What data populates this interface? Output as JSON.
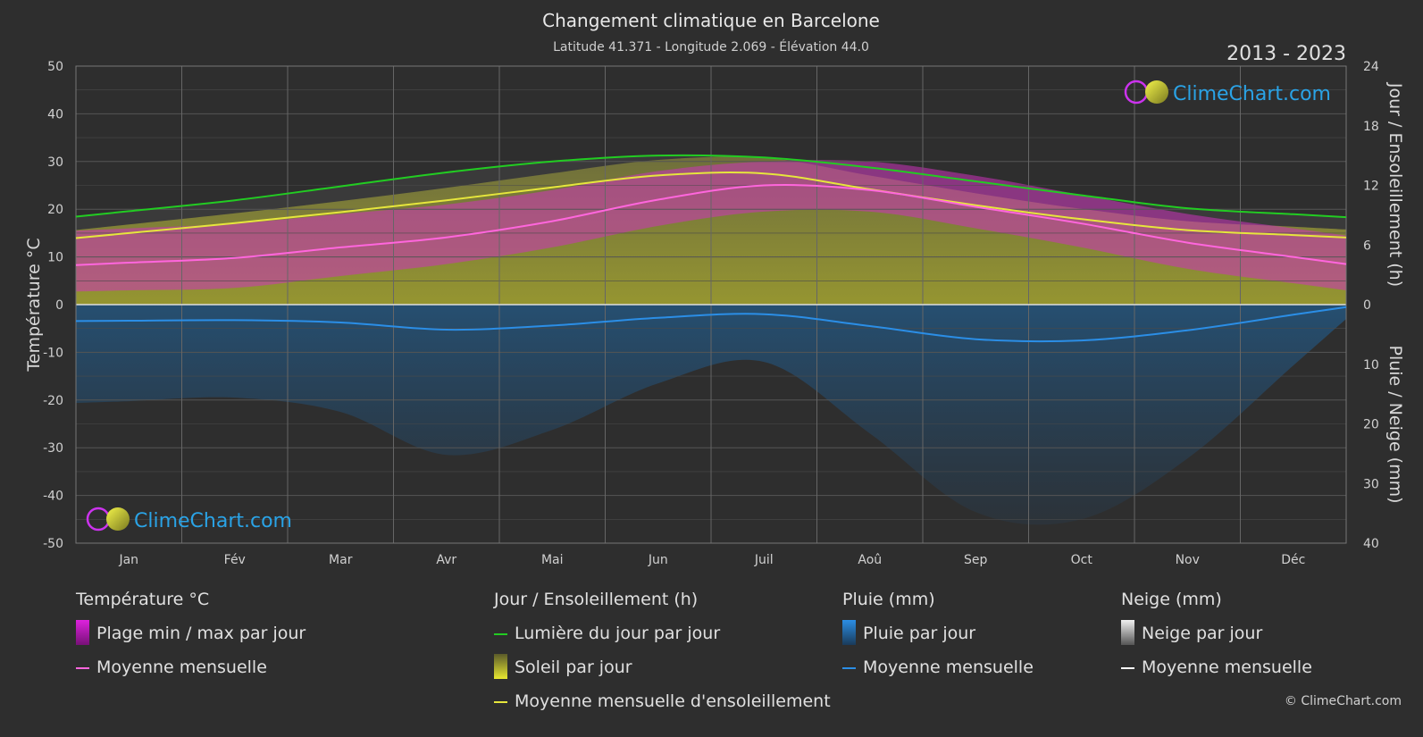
{
  "header": {
    "title": "Changement climatique en Barcelone",
    "subtitle": "Latitude 41.371 - Longitude 2.069 - Élévation 44.0",
    "period": "2013 - 2023"
  },
  "brand": {
    "name": "ClimeChart.com",
    "copyright": "© ClimeChart.com"
  },
  "chart_data": {
    "type": "area",
    "categories": [
      "Jan",
      "Fév",
      "Mar",
      "Avr",
      "Mai",
      "Jun",
      "Juil",
      "Aoû",
      "Sep",
      "Oct",
      "Nov",
      "Déc"
    ],
    "y_left": {
      "label": "Température °C",
      "ticks": [
        50,
        40,
        30,
        20,
        10,
        0,
        -10,
        -20,
        -30,
        -40,
        -50
      ],
      "range": [
        -50,
        50
      ]
    },
    "y_right_top": {
      "label": "Jour / Ensoleillement (h)",
      "ticks": [
        24,
        18,
        12,
        6,
        0
      ],
      "range": [
        0,
        24
      ]
    },
    "y_right_bottom": {
      "label": "Pluie / Neige (mm)",
      "ticks": [
        0,
        10,
        20,
        30,
        40
      ],
      "range": [
        0,
        40
      ]
    },
    "series": [
      {
        "name": "Lumière du jour par jour",
        "unit": "h",
        "color": "#22cc22",
        "values": [
          9.4,
          10.5,
          11.9,
          13.3,
          14.4,
          15.0,
          14.8,
          13.8,
          12.4,
          11.0,
          9.7,
          9.1
        ]
      },
      {
        "name": "Moyenne mensuelle d'ensoleillement",
        "unit": "h",
        "color": "#e6e63c",
        "values": [
          7.2,
          8.2,
          9.3,
          10.5,
          11.8,
          13.0,
          13.2,
          11.6,
          10.0,
          8.6,
          7.5,
          7.0
        ]
      },
      {
        "name": "Moyenne mensuelle",
        "group": "Température °C",
        "unit": "°C",
        "color": "#ff66dd",
        "values": [
          8.8,
          9.8,
          12.0,
          14.1,
          17.5,
          22.0,
          25.0,
          24.0,
          20.5,
          17.0,
          13.0,
          10.0
        ]
      },
      {
        "name": "Plage max par jour",
        "unit": "°C",
        "color": "#cc22cc",
        "values": [
          16.0,
          17.0,
          19.0,
          21.0,
          24.0,
          28.0,
          30.0,
          30.0,
          27.0,
          23.0,
          19.0,
          16.0
        ]
      },
      {
        "name": "Plage min par jour",
        "unit": "°C",
        "color": "#cc22cc",
        "values": [
          3.0,
          3.5,
          6.0,
          8.5,
          12.0,
          16.5,
          19.5,
          19.5,
          16.0,
          12.0,
          7.5,
          4.5
        ]
      },
      {
        "name": "Moyenne mensuelle",
        "group": "Pluie (mm)",
        "unit": "mm",
        "color": "#2b8ee6",
        "values": [
          2.7,
          2.6,
          3.0,
          4.2,
          3.5,
          2.2,
          1.6,
          3.6,
          5.8,
          6.0,
          4.3,
          1.7
        ]
      },
      {
        "name": "Moyenne mensuelle",
        "group": "Neige (mm)",
        "unit": "mm",
        "color": "#ffffff",
        "values": [
          0,
          0,
          0,
          0,
          0,
          0,
          0,
          0,
          0,
          0,
          0,
          0
        ]
      }
    ],
    "grid": true
  },
  "legend": {
    "temperature": {
      "title": "Température °C",
      "items": [
        {
          "label": "Plage min / max par jour",
          "kind": "box",
          "color": "#dd22dd"
        },
        {
          "label": "Moyenne mensuelle",
          "kind": "line",
          "color": "#ff66dd"
        }
      ]
    },
    "sun": {
      "title": "Jour / Ensoleillement (h)",
      "items": [
        {
          "label": "Lumière du jour par jour",
          "kind": "line",
          "color": "#22cc22"
        },
        {
          "label": "Soleil par jour",
          "kind": "box",
          "color": "#d8d820"
        },
        {
          "label": "Moyenne mensuelle d'ensoleillement",
          "kind": "line",
          "color": "#e6e63c"
        }
      ]
    },
    "rain": {
      "title": "Pluie (mm)",
      "items": [
        {
          "label": "Pluie par jour",
          "kind": "box",
          "color": "#2b8ee6"
        },
        {
          "label": "Moyenne mensuelle",
          "kind": "line",
          "color": "#2b8ee6"
        }
      ]
    },
    "snow": {
      "title": "Neige (mm)",
      "items": [
        {
          "label": "Neige par jour",
          "kind": "box",
          "color": "#e8e8e8"
        },
        {
          "label": "Moyenne mensuelle",
          "kind": "line",
          "color": "#ffffff"
        }
      ]
    }
  }
}
